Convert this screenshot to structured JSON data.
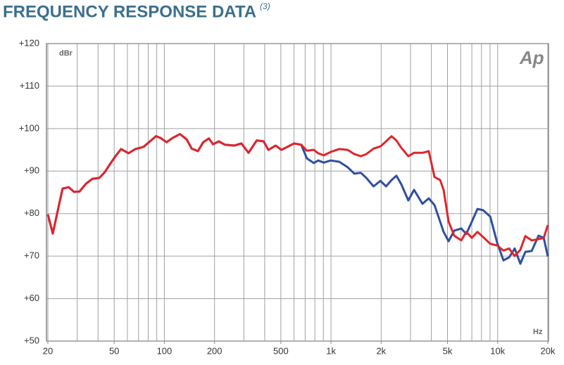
{
  "chart_data": {
    "type": "line",
    "title": "FREQUENCY RESPONSE DATA",
    "title_note": "(3)",
    "y_unit": "dBr",
    "x_unit": "Hz",
    "logo": "Ap",
    "xscale": "log",
    "grid": true,
    "xlim": [
      20,
      20000
    ],
    "ylim": [
      50,
      120
    ],
    "xticks": [
      20,
      50,
      100,
      200,
      500,
      {
        "value": 1000,
        "label": "1k"
      },
      {
        "value": 2000,
        "label": "2k"
      },
      {
        "value": 5000,
        "label": "5k"
      },
      {
        "value": 10000,
        "label": "10k"
      },
      {
        "value": 20000,
        "label": "20k"
      }
    ],
    "yticks": [
      {
        "value": 50,
        "label": "+50"
      },
      {
        "value": 60,
        "label": "+60"
      },
      {
        "value": 70,
        "label": "+70"
      },
      {
        "value": 80,
        "label": "+80"
      },
      {
        "value": 90,
        "label": "+90"
      },
      {
        "value": 100,
        "label": "+100"
      },
      {
        "value": 110,
        "label": "+110"
      },
      {
        "value": 120,
        "label": "+120"
      }
    ],
    "xgrid": [
      20,
      30,
      40,
      50,
      60,
      70,
      80,
      90,
      100,
      200,
      300,
      400,
      500,
      600,
      700,
      800,
      900,
      1000,
      2000,
      3000,
      4000,
      5000,
      6000,
      7000,
      8000,
      9000,
      10000,
      20000
    ],
    "x": [
      20,
      21.4,
      22.9,
      24.5,
      26.7,
      28.7,
      31,
      33.8,
      37,
      40.7,
      43.8,
      47.3,
      50.9,
      55,
      61,
      67,
      75,
      82,
      89,
      95,
      103,
      112,
      124,
      136,
      146,
      159,
      171,
      185,
      196,
      212,
      231,
      263,
      290,
      320,
      358,
      394,
      421,
      466,
      503,
      554,
      600,
      663,
      716,
      788,
      838,
      905,
      995,
      1120,
      1260,
      1380,
      1510,
      1630,
      1800,
      1980,
      2140,
      2310,
      2470,
      2640,
      2910,
      3150,
      3540,
      3860,
      4180,
      4520,
      4740,
      5080,
      5490,
      6050,
      6480,
      7000,
      7570,
      8180,
      9020,
      9930,
      10840,
      11710,
      12660,
      13680,
      14670,
      16000,
      17600,
      18900,
      20000
    ],
    "series": [
      {
        "color": "#2f4f9e",
        "values": [
          79.8,
          75.3,
          80.6,
          85.9,
          86.2,
          85.1,
          85.2,
          87,
          88.2,
          88.4,
          89.7,
          91.7,
          93.5,
          95.2,
          94.2,
          95.2,
          95.7,
          97,
          98.2,
          97.8,
          96.8,
          97.8,
          98.7,
          97.5,
          95.3,
          94.7,
          96.8,
          97.7,
          96.3,
          97,
          96.2,
          96,
          96.5,
          94.3,
          97.2,
          97,
          95,
          96,
          95,
          95.8,
          96.5,
          96.2,
          93,
          91.9,
          92.5,
          92,
          92.5,
          92.2,
          90.9,
          89.4,
          89.6,
          88.4,
          86.4,
          87.7,
          86.4,
          87.9,
          88.9,
          86.9,
          83.1,
          85.6,
          82.3,
          83.6,
          82,
          78.1,
          75.7,
          73.5,
          76,
          76.5,
          75.2,
          78.1,
          81.1,
          80.8,
          79.3,
          73.2,
          69,
          69.7,
          71.8,
          68.2,
          71,
          71.2,
          74.8,
          74.3,
          69.9
        ]
      },
      {
        "color": "#e0242b",
        "values": [
          79.8,
          75.3,
          80.6,
          85.9,
          86.2,
          85.1,
          85.2,
          87,
          88.2,
          88.4,
          89.7,
          91.7,
          93.5,
          95.2,
          94.2,
          95.2,
          95.7,
          97,
          98.2,
          97.8,
          96.8,
          97.8,
          98.7,
          97.5,
          95.3,
          94.7,
          96.8,
          97.7,
          96.3,
          97,
          96.2,
          96,
          96.5,
          94.3,
          97.2,
          97,
          95,
          96,
          95,
          95.8,
          96.5,
          96.2,
          94.8,
          95,
          94.2,
          93.7,
          94.5,
          95.2,
          95,
          94,
          93.5,
          94,
          95.3,
          95.8,
          97,
          98.2,
          97.2,
          95.5,
          93.5,
          94.3,
          94.3,
          94.7,
          88.6,
          87.9,
          85.6,
          78.1,
          74.8,
          73.7,
          75.7,
          74.3,
          75.7,
          74.5,
          72.9,
          72.5,
          71.3,
          71.8,
          70,
          71.5,
          74.7,
          73.7,
          74,
          74.3,
          77.3
        ]
      }
    ]
  }
}
